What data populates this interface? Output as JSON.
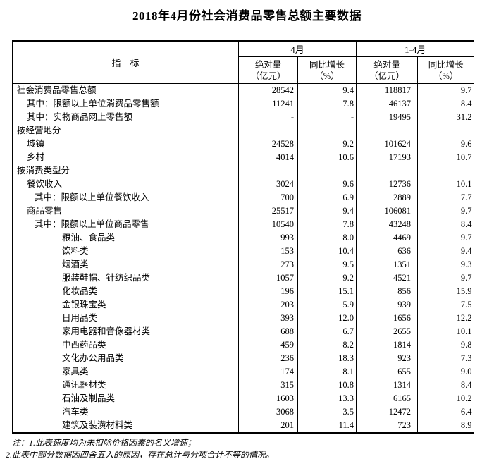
{
  "title": "2018年4月份社会消费品零售总额主要数据",
  "table": {
    "header": {
      "indicator": "指　标",
      "groups": [
        {
          "label": "4月"
        },
        {
          "label": "1-4月"
        }
      ],
      "sub": [
        {
          "line1": "绝对量",
          "line2": "（亿元）"
        },
        {
          "line1": "同比增长",
          "line2": "（%）"
        },
        {
          "line1": "绝对量",
          "line2": "（亿元）"
        },
        {
          "line1": "同比增长",
          "line2": "（%）"
        }
      ]
    },
    "rows": [
      {
        "label": "社会消费品零售总额",
        "indent": 0,
        "values": [
          "28542",
          "9.4",
          "118817",
          "9.7"
        ]
      },
      {
        "label": "其中：限额以上单位消费品零售额",
        "indent": 1,
        "values": [
          "11241",
          "7.8",
          "46137",
          "8.4"
        ]
      },
      {
        "label": "其中：实物商品网上零售额",
        "indent": 1,
        "values": [
          "-",
          "-",
          "19495",
          "31.2"
        ]
      },
      {
        "label": "按经营地分",
        "indent": 0,
        "values": [
          "",
          "",
          "",
          ""
        ]
      },
      {
        "label": "城镇",
        "indent": 1,
        "values": [
          "24528",
          "9.2",
          "101624",
          "9.6"
        ]
      },
      {
        "label": "乡村",
        "indent": 1,
        "values": [
          "4014",
          "10.6",
          "17193",
          "10.7"
        ]
      },
      {
        "label": "按消费类型分",
        "indent": 0,
        "values": [
          "",
          "",
          "",
          ""
        ]
      },
      {
        "label": "餐饮收入",
        "indent": 1,
        "values": [
          "3024",
          "9.6",
          "12736",
          "10.1"
        ]
      },
      {
        "label": "其中：限额以上单位餐饮收入",
        "indent": 2,
        "values": [
          "700",
          "6.9",
          "2889",
          "7.7"
        ]
      },
      {
        "label": "商品零售",
        "indent": 1,
        "values": [
          "25517",
          "9.4",
          "106081",
          "9.7"
        ]
      },
      {
        "label": "其中：限额以上单位商品零售",
        "indent": 2,
        "values": [
          "10540",
          "7.8",
          "43248",
          "8.4"
        ]
      },
      {
        "label": "粮油、食品类",
        "indent": 3,
        "values": [
          "993",
          "8.0",
          "4469",
          "9.7"
        ]
      },
      {
        "label": "饮料类",
        "indent": 3,
        "values": [
          "153",
          "10.4",
          "636",
          "9.4"
        ]
      },
      {
        "label": "烟酒类",
        "indent": 3,
        "values": [
          "273",
          "9.5",
          "1351",
          "9.3"
        ]
      },
      {
        "label": "服装鞋帽、针纺织品类",
        "indent": 3,
        "values": [
          "1057",
          "9.2",
          "4521",
          "9.7"
        ]
      },
      {
        "label": "化妆品类",
        "indent": 3,
        "values": [
          "196",
          "15.1",
          "856",
          "15.9"
        ]
      },
      {
        "label": "金银珠宝类",
        "indent": 3,
        "values": [
          "203",
          "5.9",
          "939",
          "7.5"
        ]
      },
      {
        "label": "日用品类",
        "indent": 3,
        "values": [
          "393",
          "12.0",
          "1656",
          "12.2"
        ]
      },
      {
        "label": "家用电器和音像器材类",
        "indent": 3,
        "values": [
          "688",
          "6.7",
          "2655",
          "10.1"
        ]
      },
      {
        "label": "中西药品类",
        "indent": 3,
        "values": [
          "459",
          "8.2",
          "1814",
          "9.8"
        ]
      },
      {
        "label": "文化办公用品类",
        "indent": 3,
        "values": [
          "236",
          "18.3",
          "923",
          "7.3"
        ]
      },
      {
        "label": "家具类",
        "indent": 3,
        "values": [
          "174",
          "8.1",
          "655",
          "9.0"
        ]
      },
      {
        "label": "通讯器材类",
        "indent": 3,
        "values": [
          "315",
          "10.8",
          "1314",
          "8.4"
        ]
      },
      {
        "label": "石油及制品类",
        "indent": 3,
        "values": [
          "1603",
          "13.3",
          "6165",
          "10.2"
        ]
      },
      {
        "label": "汽车类",
        "indent": 3,
        "values": [
          "3068",
          "3.5",
          "12472",
          "6.4"
        ]
      },
      {
        "label": "建筑及装潢材料类",
        "indent": 3,
        "values": [
          "201",
          "11.4",
          "723",
          "8.9"
        ]
      }
    ]
  },
  "notes": [
    "注：1.此表速度均为未扣除价格因素的名义增速；",
    "2.此表中部分数据因四舍五入的原因，存在总计与分项合计不等的情况。"
  ]
}
